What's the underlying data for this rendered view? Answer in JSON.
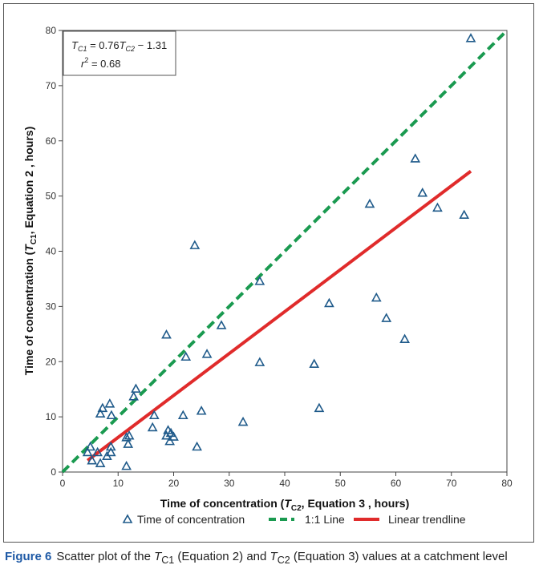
{
  "chart_data": {
    "type": "scatter",
    "title": "",
    "xlabel": "Time of concentration (T_C2, Equation 3 , hours)",
    "ylabel": "Time of concentration (T_C1, Equation 2 , hours)",
    "xlim": [
      0,
      80
    ],
    "ylim": [
      0,
      80
    ],
    "xticks": [
      0,
      10,
      20,
      30,
      40,
      50,
      60,
      70,
      80
    ],
    "yticks": [
      0,
      10,
      20,
      30,
      40,
      50,
      60,
      70,
      80
    ],
    "grid": false,
    "series": [
      {
        "name": "Time of concentration",
        "kind": "points",
        "marker": "triangle-open",
        "color": "#1f5a8a",
        "points": [
          [
            4.5,
            3.5
          ],
          [
            5.0,
            4.5
          ],
          [
            5.3,
            2.0
          ],
          [
            6.3,
            3.5
          ],
          [
            6.8,
            1.5
          ],
          [
            6.8,
            10.5
          ],
          [
            7.2,
            11.5
          ],
          [
            8.0,
            2.8
          ],
          [
            8.5,
            12.3
          ],
          [
            8.7,
            3.5
          ],
          [
            8.8,
            10.2
          ],
          [
            8.7,
            4.5
          ],
          [
            11.5,
            1.0
          ],
          [
            11.5,
            6.2
          ],
          [
            11.8,
            5.0
          ],
          [
            12.0,
            6.5
          ],
          [
            12.8,
            13.6
          ],
          [
            13.2,
            15.0
          ],
          [
            16.2,
            8.0
          ],
          [
            16.5,
            10.2
          ],
          [
            18.7,
            24.8
          ],
          [
            18.7,
            6.5
          ],
          [
            19.0,
            7.5
          ],
          [
            19.3,
            5.5
          ],
          [
            19.5,
            7.0
          ],
          [
            20.0,
            6.3
          ],
          [
            21.7,
            10.2
          ],
          [
            22.2,
            20.8
          ],
          [
            23.8,
            41.0
          ],
          [
            24.2,
            4.5
          ],
          [
            25.0,
            11.0
          ],
          [
            26.0,
            21.3
          ],
          [
            28.6,
            26.5
          ],
          [
            32.5,
            9.0
          ],
          [
            35.5,
            34.5
          ],
          [
            35.5,
            19.8
          ],
          [
            45.3,
            19.5
          ],
          [
            46.2,
            11.5
          ],
          [
            48.0,
            30.5
          ],
          [
            55.3,
            48.5
          ],
          [
            56.5,
            31.5
          ],
          [
            58.3,
            27.8
          ],
          [
            61.6,
            24.0
          ],
          [
            63.5,
            56.7
          ],
          [
            64.8,
            50.5
          ],
          [
            67.5,
            47.8
          ],
          [
            72.3,
            46.5
          ],
          [
            73.5,
            78.5
          ]
        ]
      },
      {
        "name": "1:1 Line",
        "kind": "line",
        "style": "dashed",
        "color": "#1a9a50",
        "points": [
          [
            0,
            0
          ],
          [
            80,
            80
          ]
        ]
      },
      {
        "name": "Linear trendline",
        "kind": "line",
        "style": "solid",
        "color": "#e02b2b",
        "points": [
          [
            4.5,
            2.1
          ],
          [
            73.5,
            54.5
          ]
        ]
      }
    ],
    "annotation": {
      "eq_lhs_main": "T",
      "eq_lhs_sub": "C1",
      "eq_mid": " = 0.76",
      "eq_rhs_main": "T",
      "eq_rhs_sub": "C2",
      "eq_tail": " − 1.31",
      "r2_main": "r",
      "r2_sup": "2",
      "r2_tail": " = 0.68"
    },
    "axis_title_parts": {
      "x_pre": "Time of concentration (",
      "x_main": "T",
      "x_sub": "C2",
      "x_post": ", Equation 3 , hours)",
      "y_pre": "Time of concentration (",
      "y_main": "T",
      "y_sub": "C1",
      "y_post": ", Equation 2 , hours)"
    },
    "legend_position": "bottom"
  },
  "caption": {
    "figure_label": "Figure 6",
    "text_pre": "Scatter plot of the ",
    "t1_main": "T",
    "t1_sub": "C1",
    "text_mid": " (Equation 2) and ",
    "t2_main": "T",
    "t2_sub": "C2",
    "text_post": " (Equation 3) values at a catchment level"
  }
}
